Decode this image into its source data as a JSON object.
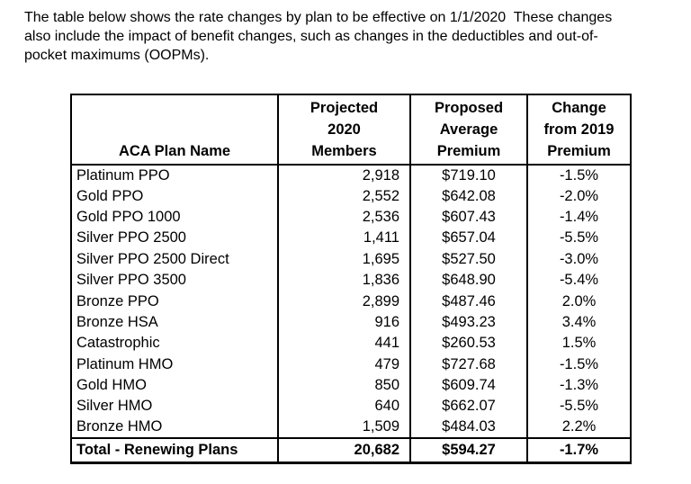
{
  "intro": {
    "lines": [
      "The table below shows the rate changes by plan to be effective on 1/1/2020  These changes",
      "also include the impact of benefit changes, such as changes in the deductibles and out-of-",
      "pocket maximums (OOPMs)."
    ]
  },
  "table": {
    "headers": {
      "plan": "ACA Plan Name",
      "members": "Projected\n2020\nMembers",
      "premium": "Proposed\nAverage\nPremium",
      "change": "Change\nfrom 2019\nPremium"
    },
    "rows": [
      {
        "plan": "Platinum PPO",
        "members": "2,918",
        "premium": "$719.10",
        "change": "-1.5%"
      },
      {
        "plan": "Gold PPO",
        "members": "2,552",
        "premium": "$642.08",
        "change": "-2.0%"
      },
      {
        "plan": "Gold PPO 1000",
        "members": "2,536",
        "premium": "$607.43",
        "change": "-1.4%"
      },
      {
        "plan": "Silver PPO 2500",
        "members": "1,411",
        "premium": "$657.04",
        "change": "-5.5%"
      },
      {
        "plan": "Silver PPO 2500 Direct",
        "members": "1,695",
        "premium": "$527.50",
        "change": "-3.0%"
      },
      {
        "plan": "Silver PPO 3500",
        "members": "1,836",
        "premium": "$648.90",
        "change": "-5.4%"
      },
      {
        "plan": "Bronze PPO",
        "members": "2,899",
        "premium": "$487.46",
        "change": "2.0%"
      },
      {
        "plan": "Bronze HSA",
        "members": "916",
        "premium": "$493.23",
        "change": "3.4%"
      },
      {
        "plan": "Catastrophic",
        "members": "441",
        "premium": "$260.53",
        "change": "1.5%"
      },
      {
        "plan": "Platinum HMO",
        "members": "479",
        "premium": "$727.68",
        "change": "-1.5%"
      },
      {
        "plan": "Gold HMO",
        "members": "850",
        "premium": "$609.74",
        "change": "-1.3%"
      },
      {
        "plan": "Silver HMO",
        "members": "640",
        "premium": "$662.07",
        "change": "-5.5%"
      },
      {
        "plan": "Bronze HMO",
        "members": "1,509",
        "premium": "$484.03",
        "change": "2.2%"
      }
    ],
    "total": {
      "plan": "Total - Renewing Plans",
      "members": "20,682",
      "premium": "$594.27",
      "change": "-1.7%"
    }
  },
  "colors": {
    "text": "#000000",
    "border": "#000000",
    "background": "#ffffff"
  }
}
